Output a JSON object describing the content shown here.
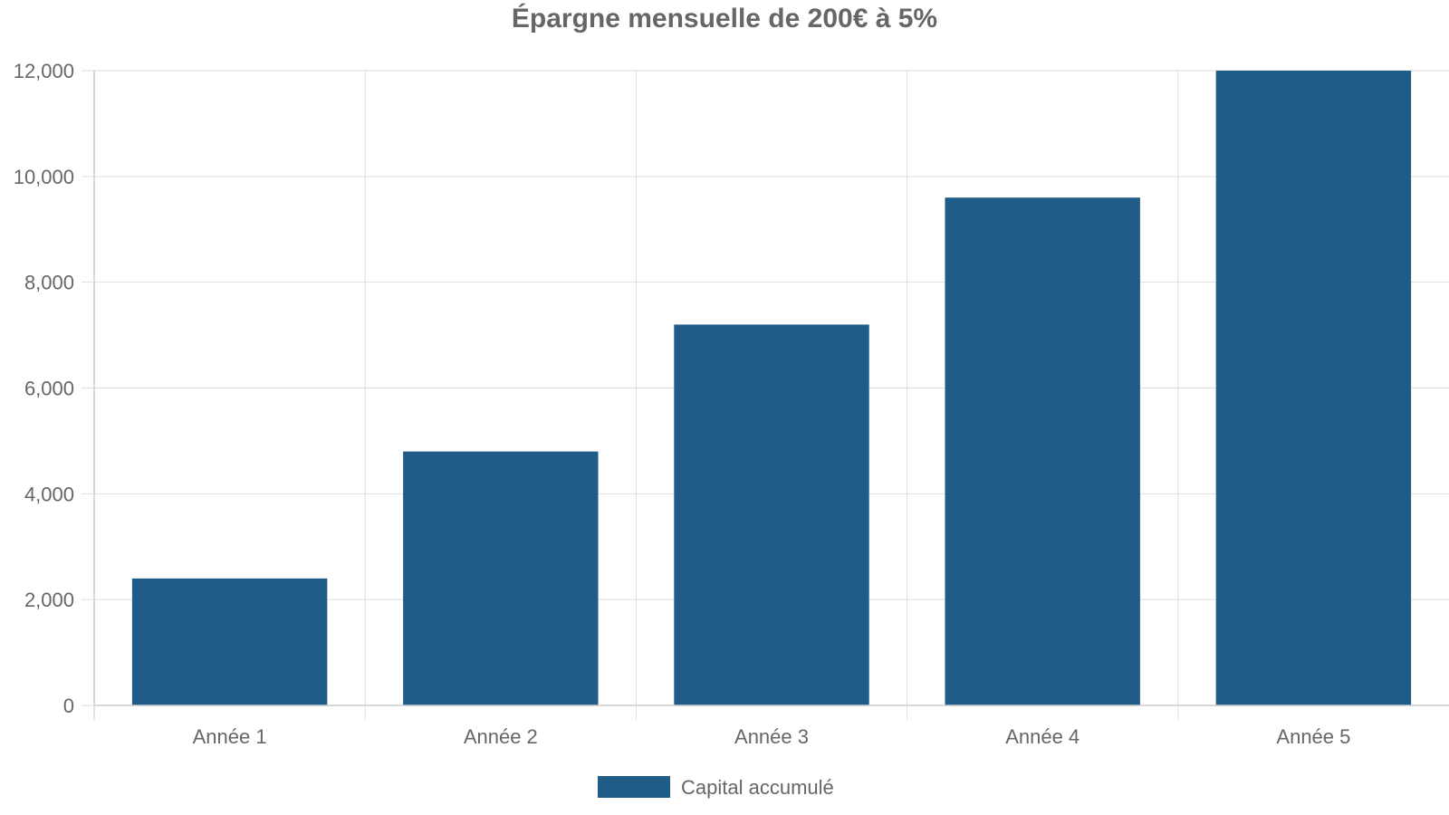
{
  "chart_data": {
    "type": "bar",
    "title": "Épargne mensuelle de 200€ à 5%",
    "categories": [
      "Année 1",
      "Année 2",
      "Année 3",
      "Année 4",
      "Année 5"
    ],
    "series": [
      {
        "name": "Capital accumulé",
        "values": [
          2400,
          4800,
          7200,
          9600,
          12000
        ],
        "color": "#1f5c87"
      }
    ],
    "ylim": [
      0,
      12000
    ],
    "yticks": [
      "0",
      "2,000",
      "4,000",
      "6,000",
      "8,000",
      "10,000",
      "12,000"
    ],
    "ytick_values": [
      0,
      2000,
      4000,
      6000,
      8000,
      10000,
      12000
    ],
    "grid": true,
    "legend_position": "bottom"
  }
}
